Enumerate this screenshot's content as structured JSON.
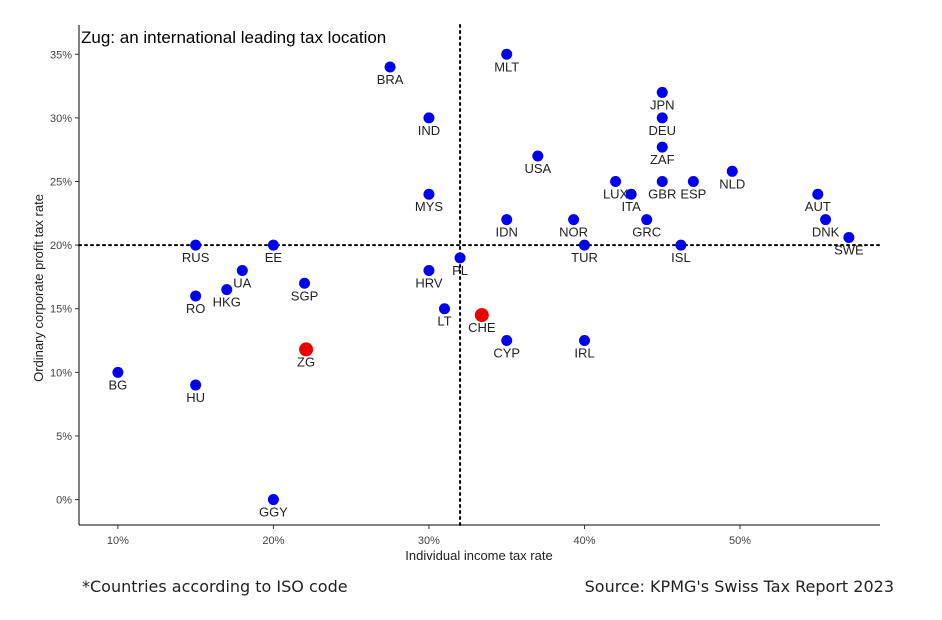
{
  "chart_data": {
    "type": "scatter",
    "title": "Zug: an international leading tax location",
    "xlabel": "Individual income tax rate",
    "ylabel": "Ordinary corporate profit tax rate",
    "xlim": [
      7.5,
      59
    ],
    "ylim": [
      -2,
      37.3
    ],
    "xticks": [
      10,
      20,
      30,
      40,
      50
    ],
    "xtick_labels": [
      "10%",
      "20%",
      "30%",
      "40%",
      "50%"
    ],
    "yticks": [
      0,
      5,
      10,
      15,
      20,
      25,
      30,
      35
    ],
    "ytick_labels": [
      "0%",
      "5%",
      "10%",
      "15%",
      "20%",
      "25%",
      "30%",
      "35%"
    ],
    "reference_lines": {
      "x": 32,
      "y": 20,
      "style": "dotted"
    },
    "grid": false,
    "colors": {
      "default": "#0000ee",
      "highlight": "#ee0000"
    },
    "points": [
      {
        "label": "BRA",
        "x": 27.5,
        "y": 34,
        "label_pos": "below"
      },
      {
        "label": "MLT",
        "x": 35,
        "y": 35,
        "label_pos": "below"
      },
      {
        "label": "JPN",
        "x": 45,
        "y": 32,
        "label_pos": "below"
      },
      {
        "label": "IND",
        "x": 30,
        "y": 30,
        "label_pos": "below"
      },
      {
        "label": "DEU",
        "x": 45,
        "y": 30,
        "label_pos": "below"
      },
      {
        "label": "ZAF",
        "x": 45,
        "y": 27.7,
        "label_pos": "below"
      },
      {
        "label": "USA",
        "x": 37,
        "y": 27,
        "label_pos": "below"
      },
      {
        "label": "NLD",
        "x": 49.5,
        "y": 25.8,
        "label_pos": "below"
      },
      {
        "label": "LUX",
        "x": 42,
        "y": 25,
        "label_pos": "below"
      },
      {
        "label": "ITA",
        "x": 43,
        "y": 24,
        "label_pos": "below"
      },
      {
        "label": "GBR",
        "x": 45,
        "y": 25,
        "label_pos": "below"
      },
      {
        "label": "ESP",
        "x": 47,
        "y": 25,
        "label_pos": "below"
      },
      {
        "label": "MYS",
        "x": 30,
        "y": 24,
        "label_pos": "below"
      },
      {
        "label": "AUT",
        "x": 55,
        "y": 24,
        "label_pos": "below"
      },
      {
        "label": "IDN",
        "x": 35,
        "y": 22,
        "label_pos": "below"
      },
      {
        "label": "NOR",
        "x": 39.3,
        "y": 22,
        "label_pos": "below"
      },
      {
        "label": "GRC",
        "x": 44,
        "y": 22,
        "label_pos": "below"
      },
      {
        "label": "DNK",
        "x": 55.5,
        "y": 22,
        "label_pos": "below"
      },
      {
        "label": "SWE",
        "x": 57,
        "y": 20.6,
        "label_pos": "below"
      },
      {
        "label": "RUS",
        "x": 15,
        "y": 20,
        "label_pos": "below"
      },
      {
        "label": "EE",
        "x": 20,
        "y": 20,
        "label_pos": "below"
      },
      {
        "label": "TUR",
        "x": 40,
        "y": 20,
        "label_pos": "below"
      },
      {
        "label": "ISL",
        "x": 46.2,
        "y": 20,
        "label_pos": "below"
      },
      {
        "label": "PL",
        "x": 32,
        "y": 19,
        "label_pos": "below"
      },
      {
        "label": "HRV",
        "x": 30,
        "y": 18,
        "label_pos": "below"
      },
      {
        "label": "UA",
        "x": 18,
        "y": 18,
        "label_pos": "below"
      },
      {
        "label": "SGP",
        "x": 22,
        "y": 17,
        "label_pos": "below"
      },
      {
        "label": "HKG",
        "x": 17,
        "y": 16.5,
        "label_pos": "below"
      },
      {
        "label": "RO",
        "x": 15,
        "y": 16,
        "label_pos": "below"
      },
      {
        "label": "LT",
        "x": 31,
        "y": 15,
        "label_pos": "below"
      },
      {
        "label": "CHE",
        "x": 33.4,
        "y": 14.5,
        "label_pos": "below",
        "highlight": true
      },
      {
        "label": "CYP",
        "x": 35,
        "y": 12.5,
        "label_pos": "below"
      },
      {
        "label": "IRL",
        "x": 40,
        "y": 12.5,
        "label_pos": "below"
      },
      {
        "label": "ZG",
        "x": 22.1,
        "y": 11.8,
        "label_pos": "below",
        "highlight": true
      },
      {
        "label": "BG",
        "x": 10,
        "y": 10,
        "label_pos": "below"
      },
      {
        "label": "HU",
        "x": 15,
        "y": 9,
        "label_pos": "below"
      },
      {
        "label": "GGY",
        "x": 20,
        "y": 0,
        "label_pos": "below"
      }
    ]
  },
  "footnotes": {
    "left": "*Countries according to ISO code",
    "right": "Source: KPMG's Swiss Tax Report 2023"
  }
}
